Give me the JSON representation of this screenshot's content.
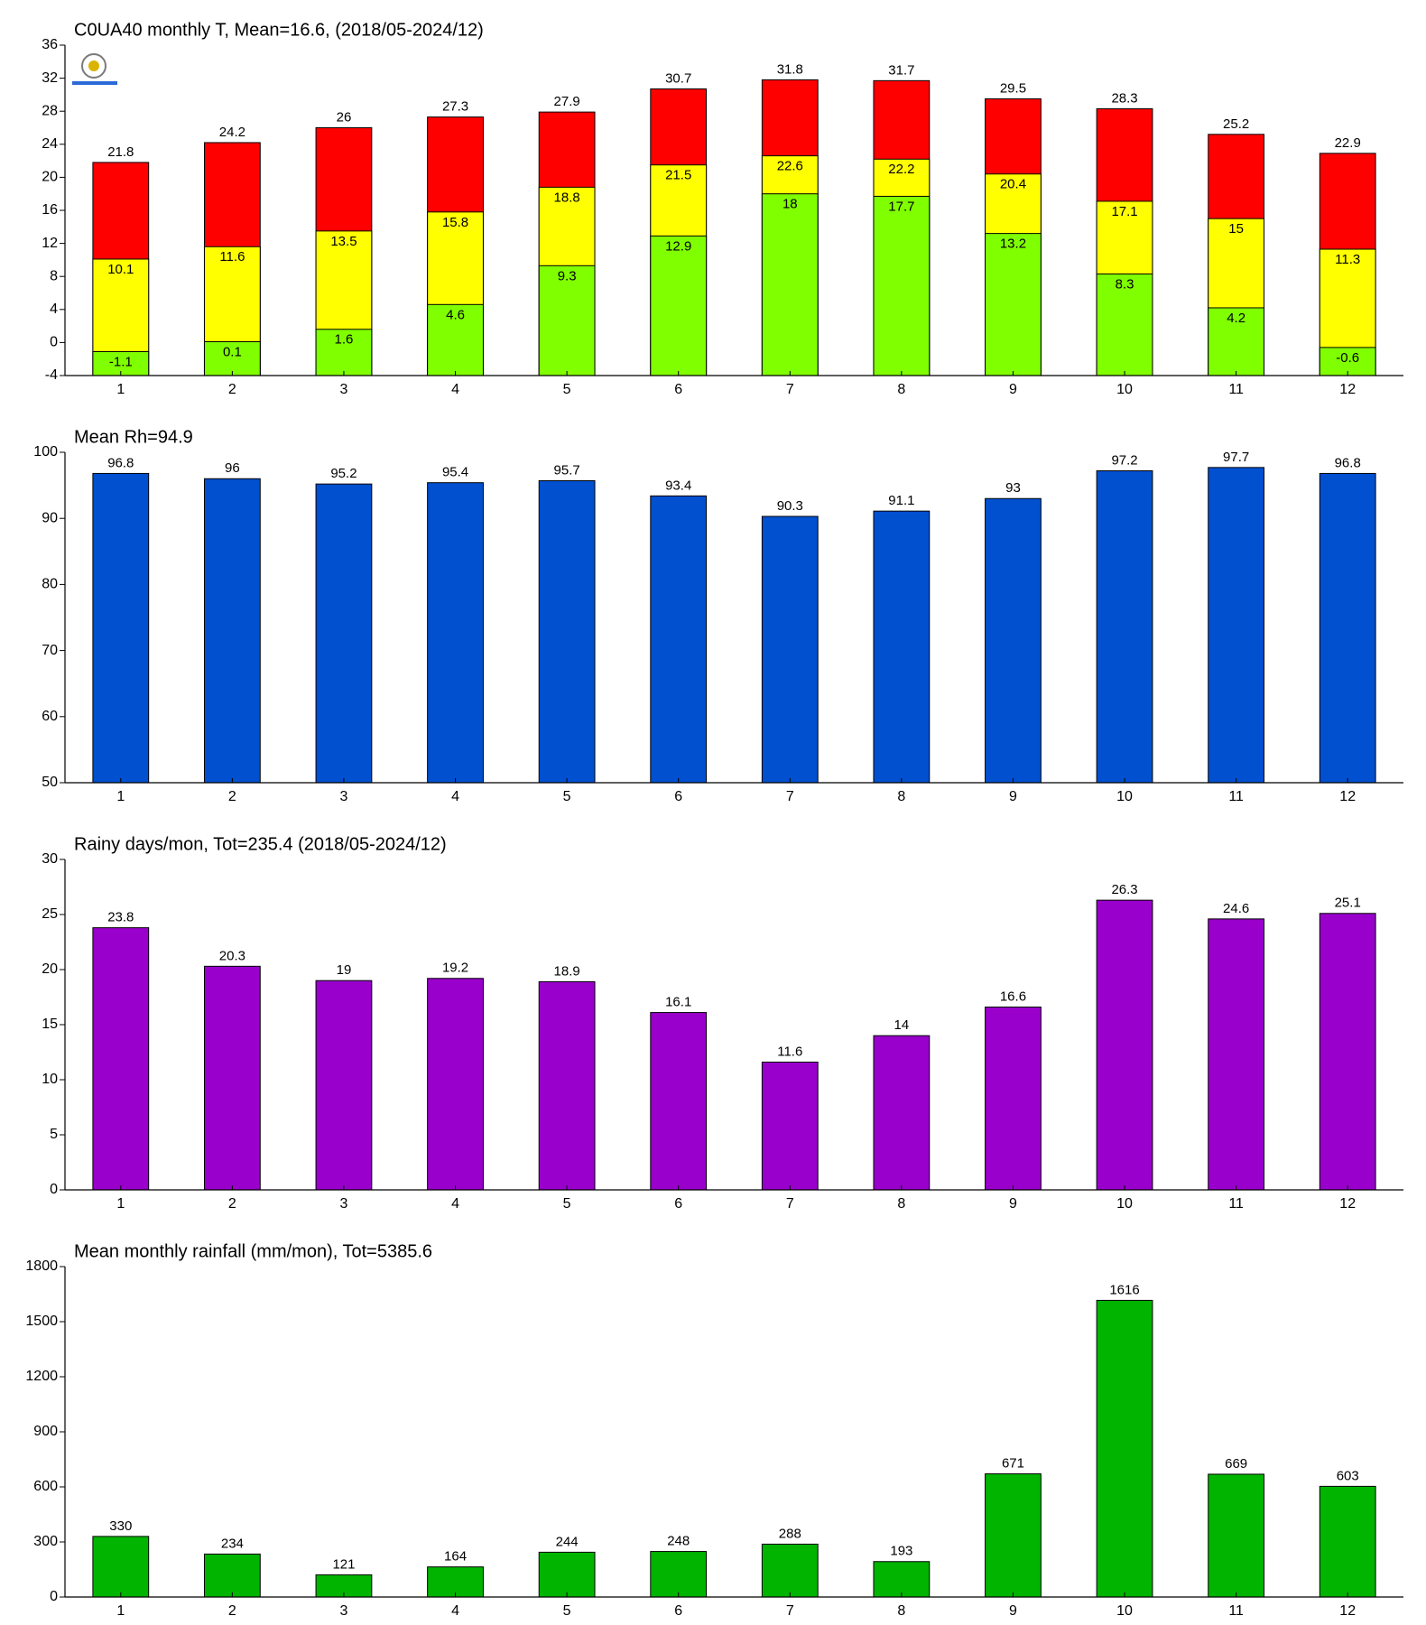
{
  "chart_data": [
    {
      "type": "bar",
      "barmode": "overlay",
      "title": "C0UA40 monthly T, Mean=16.6, (2018/05-2024/12)",
      "categories": [
        "1",
        "2",
        "3",
        "4",
        "5",
        "6",
        "7",
        "8",
        "9",
        "10",
        "11",
        "12"
      ],
      "series": [
        {
          "color": "#ff0000",
          "values": [
            21.8,
            24.2,
            26,
            27.3,
            27.9,
            30.7,
            31.8,
            31.7,
            29.5,
            28.3,
            25.2,
            22.9
          ]
        },
        {
          "color": "#ffff00",
          "values": [
            10.1,
            11.6,
            13.5,
            15.8,
            18.8,
            21.5,
            22.6,
            22.2,
            20.4,
            17.1,
            15,
            11.3
          ]
        },
        {
          "color": "#80ff00",
          "values": [
            -1.1,
            0.1,
            1.6,
            4.6,
            9.3,
            12.9,
            18,
            17.7,
            13.2,
            8.3,
            4.2,
            -0.6
          ]
        }
      ],
      "ylim": [
        -4,
        36
      ],
      "yticks": [
        -4,
        0,
        4,
        8,
        12,
        16,
        20,
        24,
        28,
        32,
        36
      ]
    },
    {
      "type": "bar",
      "title": "Mean Rh=94.9",
      "categories": [
        "1",
        "2",
        "3",
        "4",
        "5",
        "6",
        "7",
        "8",
        "9",
        "10",
        "11",
        "12"
      ],
      "series": [
        {
          "color": "#0050d0",
          "values": [
            96.8,
            96,
            95.2,
            95.4,
            95.7,
            93.4,
            90.3,
            91.1,
            93,
            97.2,
            97.7,
            96.8
          ]
        }
      ],
      "ylim": [
        50,
        100
      ],
      "yticks": [
        50,
        60,
        70,
        80,
        90,
        100
      ]
    },
    {
      "type": "bar",
      "title": "Rainy days/mon, Tot=235.4 (2018/05-2024/12)",
      "categories": [
        "1",
        "2",
        "3",
        "4",
        "5",
        "6",
        "7",
        "8",
        "9",
        "10",
        "11",
        "12"
      ],
      "series": [
        {
          "color": "#9900cc",
          "values": [
            23.8,
            20.3,
            19,
            19.2,
            18.9,
            16.1,
            11.6,
            14,
            16.6,
            26.3,
            24.6,
            25.1
          ]
        }
      ],
      "ylim": [
        0,
        30
      ],
      "yticks": [
        0,
        5,
        10,
        15,
        20,
        25,
        30
      ]
    },
    {
      "type": "bar",
      "title": "Mean monthly rainfall (mm/mon), Tot=5385.6",
      "categories": [
        "1",
        "2",
        "3",
        "4",
        "5",
        "6",
        "7",
        "8",
        "9",
        "10",
        "11",
        "12"
      ],
      "series": [
        {
          "color": "#00b400",
          "values": [
            330,
            234,
            121,
            164,
            244,
            248,
            288,
            193,
            671,
            1616,
            669,
            603
          ]
        }
      ],
      "ylim": [
        0,
        1800
      ],
      "yticks": [
        0,
        300,
        600,
        900,
        1200,
        1500,
        1800
      ]
    }
  ]
}
